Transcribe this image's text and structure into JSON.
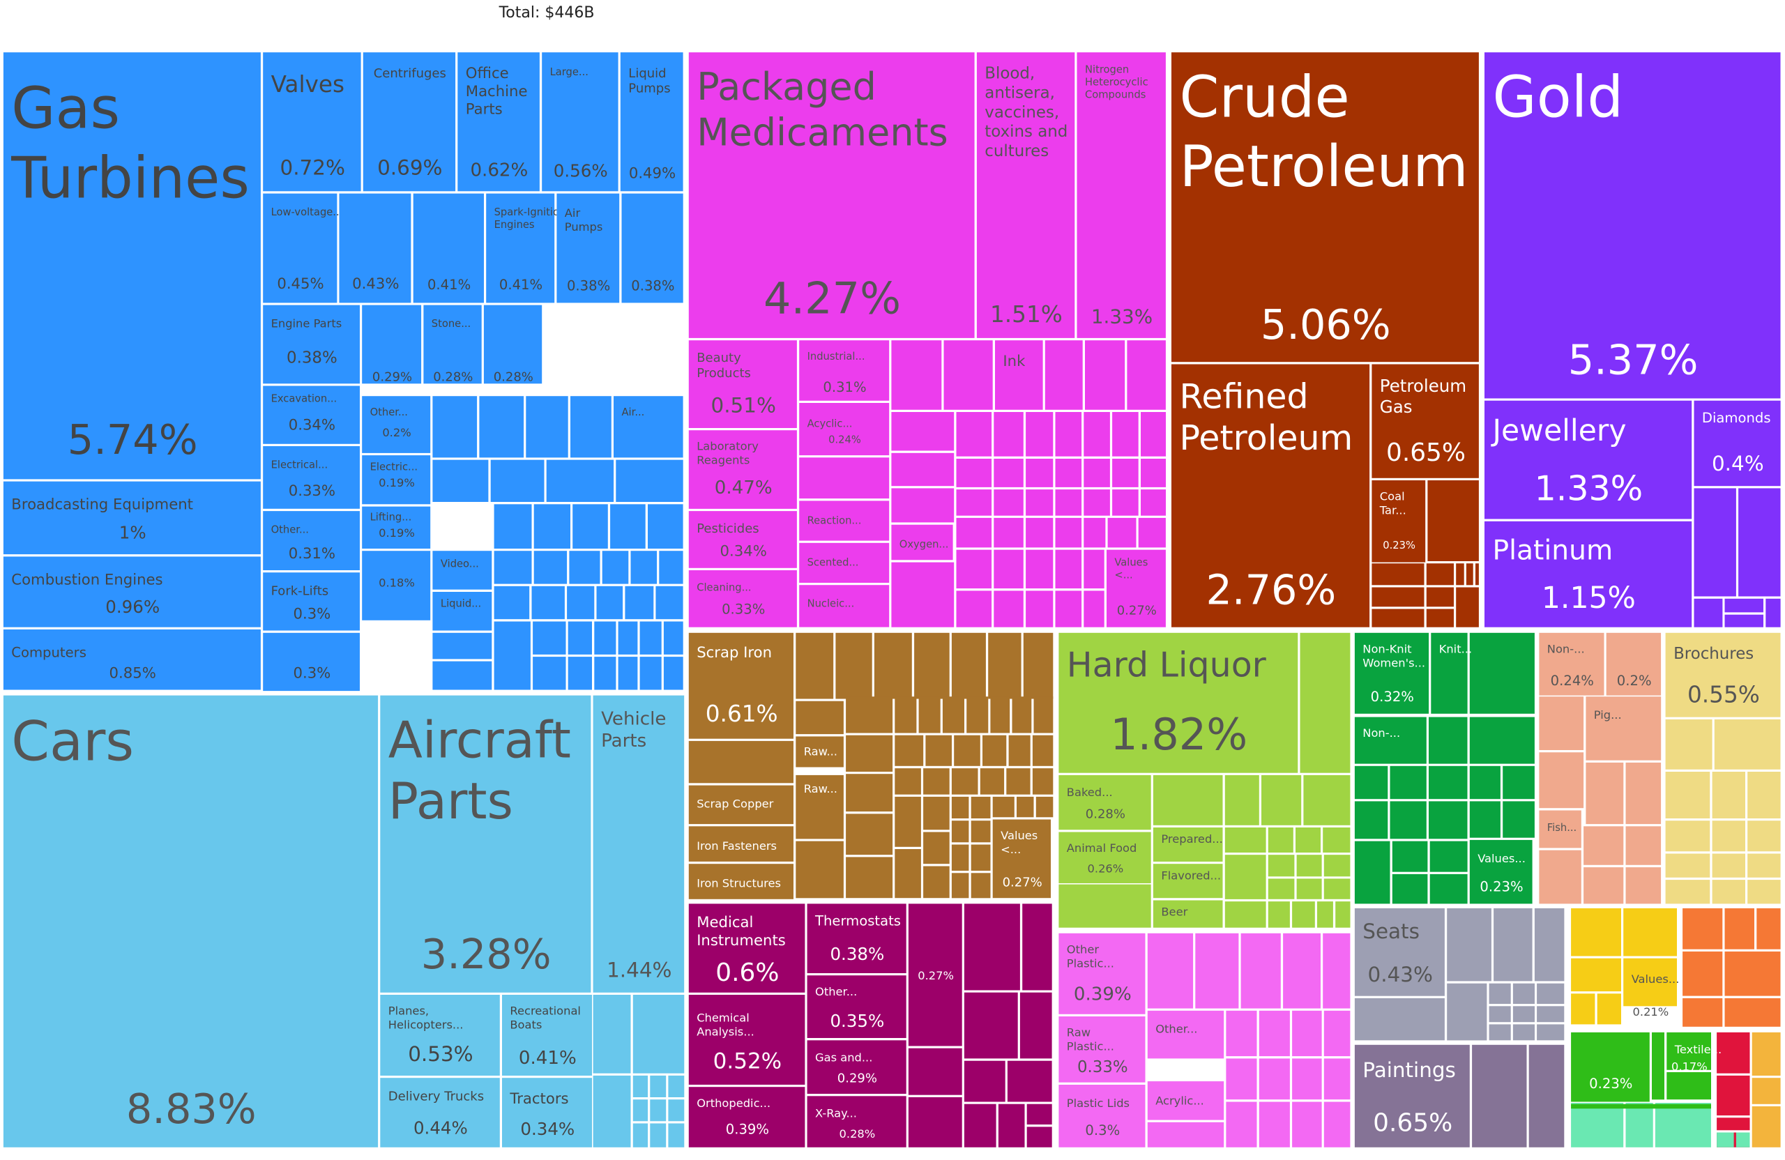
{
  "total_label": "Total: $446B",
  "chart_data": {
    "type": "treemap",
    "total": "Total: $446B",
    "tiles": [
      {
        "name": "Gas Turbines",
        "value": "5.74%",
        "color": "#2e93ff"
      },
      {
        "name": "Broadcasting Equipment",
        "value": "1%",
        "color": "#2e93ff"
      },
      {
        "name": "Combustion Engines",
        "value": "0.96%",
        "color": "#2e93ff"
      },
      {
        "name": "Computers",
        "value": "0.85%",
        "color": "#2e93ff"
      },
      {
        "name": "Valves",
        "value": "0.72%",
        "color": "#2e93ff"
      },
      {
        "name": "Centrifuges",
        "value": "0.69%",
        "color": "#2e93ff"
      },
      {
        "name": "Office Machine Parts",
        "value": "0.62%",
        "color": "#2e93ff"
      },
      {
        "name": "Large...",
        "value": "0.56%",
        "color": "#2e93ff"
      },
      {
        "name": "Liquid Pumps",
        "value": "0.49%",
        "color": "#2e93ff"
      },
      {
        "name": "Low-voltage...",
        "value": "0.45%",
        "color": "#2e93ff"
      },
      {
        "name": "",
        "value": "0.43%",
        "color": "#2e93ff"
      },
      {
        "name": "",
        "value": "0.41%",
        "color": "#2e93ff"
      },
      {
        "name": "Spark-Ignition Engines",
        "value": "0.41%",
        "color": "#2e93ff"
      },
      {
        "name": "Air Pumps",
        "value": "0.38%",
        "color": "#2e93ff"
      },
      {
        "name": "",
        "value": "0.38%",
        "color": "#2e93ff"
      },
      {
        "name": "Engine Parts",
        "value": "0.38%",
        "color": "#2e93ff"
      },
      {
        "name": "",
        "value": "0.29%",
        "color": "#2e93ff"
      },
      {
        "name": "Stone...",
        "value": "0.28%",
        "color": "#2e93ff"
      },
      {
        "name": "",
        "value": "0.28%",
        "color": "#2e93ff"
      },
      {
        "name": "Excavation...",
        "value": "0.34%",
        "color": "#2e93ff"
      },
      {
        "name": "Electrical...",
        "value": "0.33%",
        "color": "#2e93ff"
      },
      {
        "name": "Other...",
        "value": "0.31%",
        "color": "#2e93ff"
      },
      {
        "name": "Fork-Lifts",
        "value": "0.3%",
        "color": "#2e93ff"
      },
      {
        "name": "",
        "value": "0.3%",
        "color": "#2e93ff"
      },
      {
        "name": "Other...",
        "value": "0.2%",
        "color": "#2e93ff"
      },
      {
        "name": "Electric...",
        "value": "0.19%",
        "color": "#2e93ff"
      },
      {
        "name": "Lifting...",
        "value": "0.19%",
        "color": "#2e93ff"
      },
      {
        "name": "",
        "value": "0.18%",
        "color": "#2e93ff"
      },
      {
        "name": "Air...",
        "value": "",
        "color": "#2e93ff"
      },
      {
        "name": "Video...",
        "value": "",
        "color": "#2e93ff"
      },
      {
        "name": "Liquid...",
        "value": "",
        "color": "#2e93ff"
      },
      {
        "name": "Cars",
        "value": "8.83%",
        "color": "#68c7ec"
      },
      {
        "name": "Aircraft Parts",
        "value": "3.28%",
        "color": "#68c7ec"
      },
      {
        "name": "Vehicle Parts",
        "value": "1.44%",
        "color": "#68c7ec"
      },
      {
        "name": "Planes, Helicopters...",
        "value": "0.53%",
        "color": "#68c7ec"
      },
      {
        "name": "Recreational Boats",
        "value": "0.41%",
        "color": "#68c7ec"
      },
      {
        "name": "Delivery Trucks",
        "value": "0.44%",
        "color": "#68c7ec"
      },
      {
        "name": "Tractors",
        "value": "0.34%",
        "color": "#68c7ec"
      },
      {
        "name": "Packaged Medicaments",
        "value": "4.27%",
        "color": "#ec3ded"
      },
      {
        "name": "Blood, antisera, vaccines, toxins and cultures",
        "value": "1.51%",
        "color": "#ec3ded"
      },
      {
        "name": "Nitrogen Heterocyclic Compounds",
        "value": "1.33%",
        "color": "#ec3ded"
      },
      {
        "name": "Beauty Products",
        "value": "0.51%",
        "color": "#ec3ded"
      },
      {
        "name": "Industrial...",
        "value": "0.31%",
        "color": "#ec3ded"
      },
      {
        "name": "Ink",
        "value": "",
        "color": "#ec3ded"
      },
      {
        "name": "Acyclic...",
        "value": "0.24%",
        "color": "#ec3ded"
      },
      {
        "name": "Laboratory Reagents",
        "value": "0.47%",
        "color": "#ec3ded"
      },
      {
        "name": "Reaction...",
        "value": "",
        "color": "#ec3ded"
      },
      {
        "name": "Pesticides",
        "value": "0.34%",
        "color": "#ec3ded"
      },
      {
        "name": "Scented...",
        "value": "",
        "color": "#ec3ded"
      },
      {
        "name": "Oxygen...",
        "value": "",
        "color": "#ec3ded"
      },
      {
        "name": "Cleaning...",
        "value": "0.33%",
        "color": "#ec3ded"
      },
      {
        "name": "Nucleic...",
        "value": "",
        "color": "#ec3ded"
      },
      {
        "name": "Values <...",
        "value": "0.27%",
        "color": "#ec3ded"
      },
      {
        "name": "Crude Petroleum",
        "value": "5.06%",
        "color": "#a33101"
      },
      {
        "name": "Refined Petroleum",
        "value": "2.76%",
        "color": "#a33101"
      },
      {
        "name": "Petroleum Gas",
        "value": "0.65%",
        "color": "#a33101"
      },
      {
        "name": "Coal Tar...",
        "value": "0.23%",
        "color": "#a33101"
      },
      {
        "name": "Gold",
        "value": "5.37%",
        "color": "#8031fb"
      },
      {
        "name": "Jewellery",
        "value": "1.33%",
        "color": "#8031fb"
      },
      {
        "name": "Diamonds",
        "value": "0.4%",
        "color": "#8031fb"
      },
      {
        "name": "Platinum",
        "value": "1.15%",
        "color": "#8031fb"
      },
      {
        "name": "Scrap Iron",
        "value": "0.61%",
        "color": "#a8732b"
      },
      {
        "name": "Raw...",
        "value": "",
        "color": "#a8732b"
      },
      {
        "name": "Raw...",
        "value": "",
        "color": "#a8732b"
      },
      {
        "name": "Scrap Copper",
        "value": "",
        "color": "#a8732b"
      },
      {
        "name": "Iron Fasteners",
        "value": "",
        "color": "#a8732b"
      },
      {
        "name": "Iron Structures",
        "value": "",
        "color": "#a8732b"
      },
      {
        "name": "Values <...",
        "value": "0.27%",
        "color": "#a8732b"
      },
      {
        "name": "Medical Instruments",
        "value": "0.6%",
        "color": "#9c0069"
      },
      {
        "name": "Thermostats",
        "value": "0.38%",
        "color": "#9c0069"
      },
      {
        "name": "",
        "value": "0.27%",
        "color": "#9c0069"
      },
      {
        "name": "Chemical Analysis...",
        "value": "0.52%",
        "color": "#9c0069"
      },
      {
        "name": "Other...",
        "value": "0.35%",
        "color": "#9c0069"
      },
      {
        "name": "Gas and...",
        "value": "0.29%",
        "color": "#9c0069"
      },
      {
        "name": "Orthopedic...",
        "value": "0.39%",
        "color": "#9c0069"
      },
      {
        "name": "X-Ray...",
        "value": "0.28%",
        "color": "#9c0069"
      },
      {
        "name": "Hard Liquor",
        "value": "1.82%",
        "color": "#a0d443"
      },
      {
        "name": "Baked...",
        "value": "0.28%",
        "color": "#a0d443"
      },
      {
        "name": "Animal Food",
        "value": "0.26%",
        "color": "#a0d443"
      },
      {
        "name": "Prepared...",
        "value": "",
        "color": "#a0d443"
      },
      {
        "name": "Flavored...",
        "value": "",
        "color": "#a0d443"
      },
      {
        "name": "Beer",
        "value": "",
        "color": "#a0d443"
      },
      {
        "name": "Other Plastic...",
        "value": "0.39%",
        "color": "#f369f3"
      },
      {
        "name": "Raw Plastic...",
        "value": "0.33%",
        "color": "#f369f3"
      },
      {
        "name": "Plastic Lids",
        "value": "0.3%",
        "color": "#f369f3"
      },
      {
        "name": "Other...",
        "value": "",
        "color": "#f369f3"
      },
      {
        "name": "Acrylic...",
        "value": "",
        "color": "#f369f3"
      },
      {
        "name": "Non-Knit Women's...",
        "value": "0.32%",
        "color": "#09a33f"
      },
      {
        "name": "Knit...",
        "value": "",
        "color": "#09a33f"
      },
      {
        "name": "Non-...",
        "value": "",
        "color": "#09a33f"
      },
      {
        "name": "Values...",
        "value": "0.23%",
        "color": "#09a33f"
      },
      {
        "name": "Non-...",
        "value": "0.24%",
        "color": "#f0a98d"
      },
      {
        "name": "",
        "value": "0.2%",
        "color": "#f0a98d"
      },
      {
        "name": "Pig...",
        "value": "",
        "color": "#f0a98d"
      },
      {
        "name": "Fish...",
        "value": "",
        "color": "#f0a98d"
      },
      {
        "name": "Brochures",
        "value": "0.55%",
        "color": "#efdb84"
      },
      {
        "name": "Seats",
        "value": "0.43%",
        "color": "#9d9fb3"
      },
      {
        "name": "Paintings",
        "value": "0.65%",
        "color": "#857396"
      },
      {
        "name": "Values...",
        "value": "0.21%",
        "color": "#f6cd16"
      },
      {
        "name": "",
        "value": "0.23%",
        "color": "#2fbd18"
      },
      {
        "name": "Textile...",
        "value": "0.17%",
        "color": "#2fbd18"
      }
    ]
  }
}
